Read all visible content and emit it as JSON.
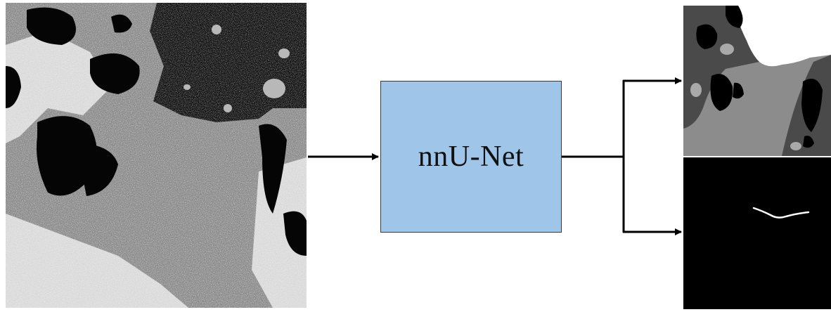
{
  "model": {
    "label": "nnU-Net",
    "fill_color": "#9fc5e8",
    "border_color": "#3a3a3a"
  },
  "input_image": {
    "kind": "sar-glacier-satellite-image",
    "colors": {
      "dark": "#0b0b0b",
      "glacier": "#8a8a8a",
      "bright": "#e6e6e6"
    }
  },
  "outputs": [
    {
      "kind": "zone-segmentation-mask",
      "colors": {
        "ocean": "#ffffff",
        "glacier": "#8c8c8c",
        "rock": "#4a4a4a",
        "na": "#000000"
      }
    },
    {
      "kind": "calving-front-mask",
      "colors": {
        "background": "#000000",
        "front": "#ffffff"
      }
    }
  ],
  "connector_color": "#000000"
}
